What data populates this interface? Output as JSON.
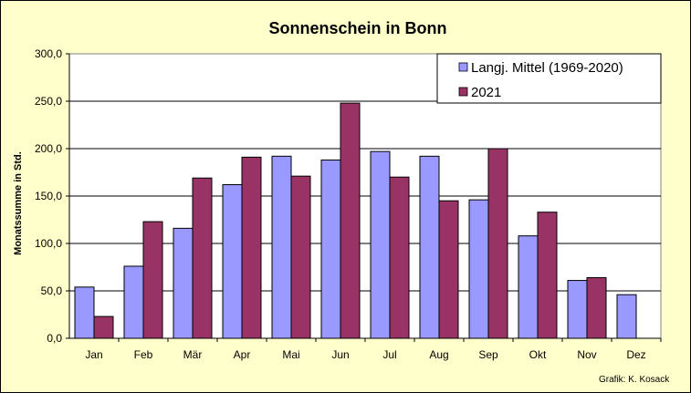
{
  "chart_data": {
    "type": "bar",
    "title": "Sonnenschein in Bonn",
    "xlabel": "",
    "ylabel": "Monatssumme in Std.",
    "ylim": [
      0,
      300
    ],
    "yticks": [
      "0,0",
      "50,0",
      "100,0",
      "150,0",
      "200,0",
      "250,0",
      "300,0"
    ],
    "categories": [
      "Jan",
      "Feb",
      "Mär",
      "Apr",
      "Mai",
      "Jun",
      "Jul",
      "Aug",
      "Sep",
      "Okt",
      "Nov",
      "Dez"
    ],
    "series": [
      {
        "name": "Langj. Mittel (1969-2020)",
        "color": "#9999ff",
        "values": [
          54,
          76,
          116,
          162,
          192,
          188,
          197,
          192,
          146,
          108,
          61,
          46
        ]
      },
      {
        "name": "2021",
        "color": "#993366",
        "values": [
          23,
          123,
          169,
          191,
          171,
          248,
          170,
          145,
          200,
          133,
          64,
          null
        ]
      }
    ],
    "grid": true,
    "legend_position": "top-right",
    "background": "#ffffcc",
    "plot_background": "#ffffff"
  },
  "credit": "Grafik:  K. Kosack"
}
